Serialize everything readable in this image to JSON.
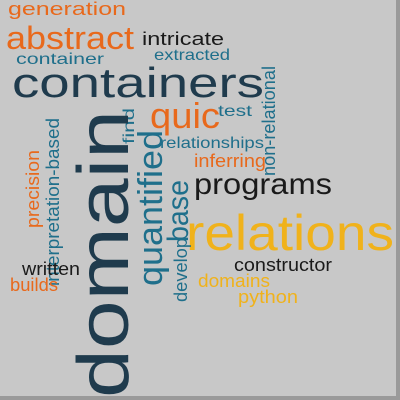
{
  "palette": {
    "navy": "#1f3b4d",
    "blue": "#1f6f8b",
    "orange": "#e8691c",
    "gold": "#f0b21b",
    "black": "#1a1a1a",
    "background": "#c8c8c8"
  },
  "words": [
    {
      "key": "generation",
      "text": "generation",
      "color": "#e8691c"
    },
    {
      "key": "abstract",
      "text": "abstract",
      "color": "#e8691c"
    },
    {
      "key": "intricate",
      "text": "intricate",
      "color": "#1a1a1a"
    },
    {
      "key": "container",
      "text": "container",
      "color": "#1f6f8b"
    },
    {
      "key": "extracted",
      "text": "extracted",
      "color": "#1f6f8b"
    },
    {
      "key": "containers",
      "text": "containers",
      "color": "#1f3b4d"
    },
    {
      "key": "non_relational",
      "text": "non-relational",
      "color": "#1f6f8b"
    },
    {
      "key": "find",
      "text": "find",
      "color": "#1f6f8b"
    },
    {
      "key": "quic",
      "text": "quic",
      "color": "#e8691c"
    },
    {
      "key": "test",
      "text": "test",
      "color": "#1f6f8b"
    },
    {
      "key": "interpretation_based",
      "text": "interpretation-based",
      "color": "#1f6f8b"
    },
    {
      "key": "relationships",
      "text": "relationships",
      "color": "#1f6f8b"
    },
    {
      "key": "inferring",
      "text": "inferring",
      "color": "#e8691c"
    },
    {
      "key": "precision",
      "text": "precision",
      "color": "#e8691c"
    },
    {
      "key": "domain",
      "text": "domain",
      "color": "#1f3b4d"
    },
    {
      "key": "quantified",
      "text": "quantified",
      "color": "#1f6f8b"
    },
    {
      "key": "base",
      "text": "base",
      "color": "#1f6f8b"
    },
    {
      "key": "programs",
      "text": "programs",
      "color": "#1a1a1a"
    },
    {
      "key": "relations",
      "text": "relations",
      "color": "#f0b21b"
    },
    {
      "key": "develop",
      "text": "develop",
      "color": "#1f6f8b"
    },
    {
      "key": "constructor",
      "text": "constructor",
      "color": "#1a1a1a"
    },
    {
      "key": "written",
      "text": "written",
      "color": "#1a1a1a"
    },
    {
      "key": "builds",
      "text": "builds",
      "color": "#e8691c"
    },
    {
      "key": "domains",
      "text": "domains",
      "color": "#f0b21b"
    },
    {
      "key": "python",
      "text": "python",
      "color": "#f0b21b"
    }
  ]
}
